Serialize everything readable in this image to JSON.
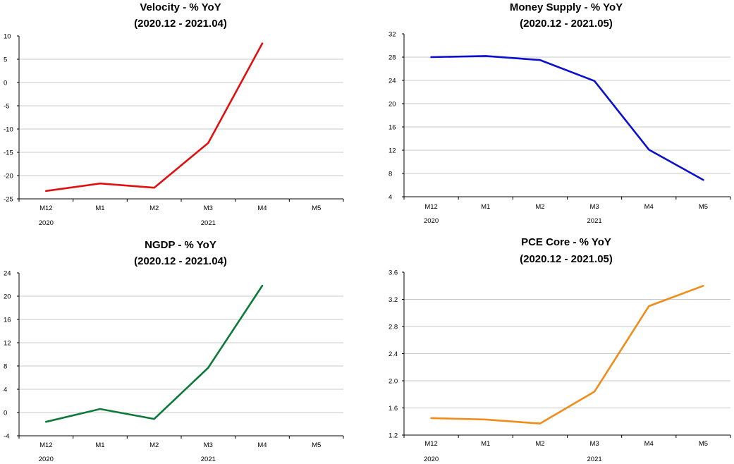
{
  "chart_data": [
    {
      "type": "line",
      "title": "Velocity - % YoY",
      "subtitle": "(2020.12 - 2021.04)",
      "x": [
        "M12",
        "M1",
        "M2",
        "M3",
        "M4",
        "M5"
      ],
      "year_labels": [
        {
          "at": "M12",
          "text": "2020"
        },
        {
          "at": "M3",
          "text": "2021"
        }
      ],
      "series": [
        {
          "values": [
            -23.3,
            -21.7,
            -22.6,
            -13.0,
            8.4,
            null
          ],
          "color": "#e01010"
        }
      ],
      "ylim": [
        -25,
        10
      ],
      "yticks": [
        "10",
        "5",
        "0",
        "-5",
        "-10",
        "-15",
        "-20",
        "-25"
      ],
      "grid": true
    },
    {
      "type": "line",
      "title": "Money Supply - % YoY",
      "subtitle": "(2020.12 - 2021.05)",
      "x": [
        "M12",
        "M1",
        "M2",
        "M3",
        "M4",
        "M5"
      ],
      "year_labels": [
        {
          "at": "M12",
          "text": "2020"
        },
        {
          "at": "M3",
          "text": "2021"
        }
      ],
      "series": [
        {
          "values": [
            28.0,
            28.2,
            27.5,
            23.9,
            12.1,
            6.9
          ],
          "color": "#0a10cc"
        }
      ],
      "ylim": [
        4,
        32
      ],
      "yticks": [
        "32",
        "28",
        "24",
        "20",
        "16",
        "12",
        "8",
        "4"
      ],
      "grid": true
    },
    {
      "type": "line",
      "title": "NGDP - % YoY",
      "subtitle": "(2020.12 - 2021.04)",
      "x": [
        "M12",
        "M1",
        "M2",
        "M3",
        "M4",
        "M5"
      ],
      "year_labels": [
        {
          "at": "M12",
          "text": "2020"
        },
        {
          "at": "M3",
          "text": "2021"
        }
      ],
      "series": [
        {
          "values": [
            -1.6,
            0.6,
            -1.1,
            7.7,
            21.8,
            null
          ],
          "color": "#0d7a3a"
        }
      ],
      "ylim": [
        -4,
        24
      ],
      "yticks": [
        "24",
        "20",
        "16",
        "12",
        "8",
        "4",
        "0",
        "-4"
      ],
      "grid": true
    },
    {
      "type": "line",
      "title": "PCE Core - % YoY",
      "subtitle": "(2020.12 - 2021.05)",
      "x": [
        "M12",
        "M1",
        "M2",
        "M3",
        "M4",
        "M5"
      ],
      "year_labels": [
        {
          "at": "M12",
          "text": "2020"
        },
        {
          "at": "M3",
          "text": "2021"
        }
      ],
      "series": [
        {
          "values": [
            1.45,
            1.43,
            1.37,
            1.84,
            3.1,
            3.4
          ],
          "color": "#f08c1a"
        }
      ],
      "ylim": [
        1.2,
        3.6
      ],
      "yticks": [
        "3.6",
        "3.2",
        "2.8",
        "2.4",
        "2.0",
        "1.6",
        "1.2"
      ],
      "grid": true
    }
  ]
}
